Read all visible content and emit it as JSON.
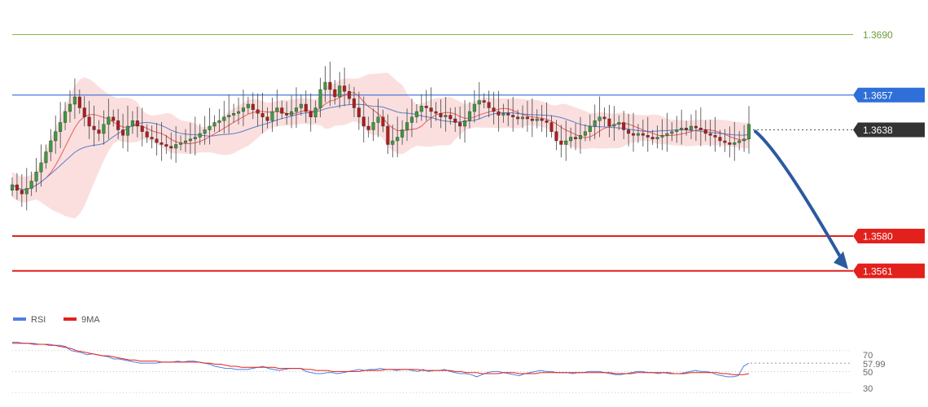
{
  "chart_data": {
    "type": "candlestick",
    "price_axis": {
      "min": 1.354,
      "max": 1.37
    },
    "levels": [
      {
        "name": "target-level-1-3690",
        "value": 1.369,
        "label": "1.3690",
        "line_color": "#7dbb52",
        "label_bg": "#ffffff",
        "label_color": "#6a9e36",
        "style": "thin"
      },
      {
        "name": "resistance-1-3657",
        "value": 1.3657,
        "label": "1.3657",
        "line_color": "#4a78d6",
        "label_bg": "#2e6fd8",
        "label_color": "#ffffff",
        "style": "medium"
      },
      {
        "name": "current-price-1-3638",
        "value": 1.3638,
        "label": "1.3638",
        "line_color": "#444444",
        "label_bg": "#333333",
        "label_color": "#ffffff",
        "style": "dotted"
      },
      {
        "name": "support-1-3580",
        "value": 1.358,
        "label": "1.3580",
        "line_color": "#e2211c",
        "label_bg": "#e2211c",
        "label_color": "#ffffff",
        "style": "thick"
      },
      {
        "name": "support-1-3561",
        "value": 1.3561,
        "label": "1.3561",
        "line_color": "#e2211c",
        "label_bg": "#e2211c",
        "label_color": "#ffffff",
        "style": "thick"
      }
    ],
    "price_path": [
      1.3608,
      1.3605,
      1.3603,
      1.3606,
      1.361,
      1.3615,
      1.362,
      1.3626,
      1.3632,
      1.3637,
      1.3642,
      1.3648,
      1.3652,
      1.3656,
      1.365,
      1.3645,
      1.364,
      1.3638,
      1.3636,
      1.3641,
      1.3645,
      1.3643,
      1.3638,
      1.3635,
      1.364,
      1.3643,
      1.364,
      1.3637,
      1.3634,
      1.3633,
      1.3631,
      1.363,
      1.3629,
      1.3628,
      1.363,
      1.3631,
      1.3632,
      1.3633,
      1.3634,
      1.3636,
      1.3638,
      1.364,
      1.3642,
      1.3643,
      1.3645,
      1.3646,
      1.3647,
      1.3648,
      1.365,
      1.3652,
      1.3649,
      1.3647,
      1.3645,
      1.3643,
      1.3648,
      1.365,
      1.3647,
      1.3646,
      1.3648,
      1.365,
      1.3652,
      1.3648,
      1.3645,
      1.365,
      1.366,
      1.3664,
      1.366,
      1.3656,
      1.3662,
      1.3659,
      1.3655,
      1.365,
      1.3645,
      1.364,
      1.3638,
      1.3642,
      1.3645,
      1.364,
      1.363,
      1.3632,
      1.3634,
      1.3638,
      1.3642,
      1.3645,
      1.3648,
      1.3651,
      1.365,
      1.3648,
      1.3647,
      1.3645,
      1.3646,
      1.3644,
      1.3642,
      1.364,
      1.3643,
      1.3648,
      1.3652,
      1.3654,
      1.3653,
      1.365,
      1.3648,
      1.3646,
      1.3647,
      1.3646,
      1.3645,
      1.3644,
      1.3645,
      1.3644,
      1.3643,
      1.3644,
      1.3643,
      1.3642,
      1.3637,
      1.3632,
      1.363,
      1.3632,
      1.3634,
      1.3633,
      1.3635,
      1.3637,
      1.364,
      1.3643,
      1.3645,
      1.3644,
      1.364,
      1.3641,
      1.3642,
      1.3638,
      1.3636,
      1.3635,
      1.3636,
      1.3635,
      1.3634,
      1.3633,
      1.3634,
      1.3635,
      1.3636,
      1.3637,
      1.3638,
      1.3639,
      1.3638,
      1.364,
      1.3639,
      1.3638,
      1.3636,
      1.3635,
      1.3634,
      1.3632,
      1.3631,
      1.363,
      1.3631,
      1.3632,
      1.3633,
      1.3641
    ],
    "bollinger_band": {
      "fill_color": "#f7c5c5",
      "fill_opacity": 0.55
    },
    "moving_averages": [
      {
        "name": "ma-fast-red",
        "color": "#e85a5a"
      },
      {
        "name": "ma-slow-blue",
        "color": "#5b7fc8"
      }
    ],
    "forecast_arrow": {
      "from": 1.3638,
      "to": 1.3561,
      "color": "#2c5aa0"
    },
    "rsi_panel": {
      "legend": [
        {
          "name": "RSI",
          "color": "#4e7fe0"
        },
        {
          "name": "9MA",
          "color": "#e2211c"
        }
      ],
      "ticks": [
        "70",
        "50",
        "30"
      ],
      "tick_values": [
        70,
        50,
        30
      ],
      "current_value": 57.99,
      "current_label": "57.99",
      "current_color": "#6a8fe0",
      "axis": {
        "min": 20,
        "max": 90
      },
      "rsi_values": [
        78,
        78,
        77,
        77,
        77,
        76,
        76,
        76,
        75,
        75,
        74,
        70,
        69,
        68,
        66,
        67,
        66,
        65,
        64,
        62,
        62,
        61,
        60,
        59,
        58,
        58,
        58,
        58,
        59,
        59,
        59,
        60,
        59,
        60,
        60,
        59,
        58,
        57,
        55,
        54,
        53,
        53,
        52,
        52,
        52,
        53,
        54,
        55,
        53,
        52,
        51,
        52,
        53,
        53,
        53,
        50,
        49,
        48,
        48,
        49,
        49,
        48,
        49,
        50,
        51,
        52,
        51,
        52,
        52,
        53,
        52,
        52,
        51,
        52,
        52,
        51,
        50,
        52,
        50,
        51,
        51,
        52,
        50,
        49,
        48,
        48,
        47,
        45,
        47,
        49,
        50,
        50,
        49,
        48,
        47,
        46,
        48,
        49,
        50,
        51,
        50,
        50,
        49,
        49,
        49,
        48,
        49,
        49,
        50,
        50,
        50,
        49,
        48,
        47,
        47,
        48,
        49,
        50,
        50,
        49,
        49,
        48,
        49,
        48,
        48,
        48,
        49,
        50,
        51,
        50,
        50,
        49,
        47,
        46,
        45,
        45,
        46,
        55,
        58
      ],
      "ma_values": [
        77,
        77,
        77,
        77,
        76,
        76,
        76,
        75,
        75,
        74,
        73,
        72,
        70,
        69,
        68,
        67,
        66,
        65,
        65,
        64,
        63,
        62,
        61,
        61,
        60,
        60,
        60,
        60,
        59,
        59,
        59,
        59,
        59,
        59,
        59,
        59,
        58,
        58,
        57,
        57,
        56,
        55,
        55,
        54,
        54,
        54,
        54,
        54,
        54,
        54,
        53,
        53,
        53,
        53,
        53,
        52,
        52,
        51,
        51,
        51,
        50,
        50,
        50,
        50,
        50,
        50,
        51,
        51,
        51,
        51,
        52,
        52,
        52,
        52,
        52,
        52,
        52,
        51,
        51,
        51,
        51,
        51,
        51,
        50,
        50,
        49,
        49,
        49,
        48,
        48,
        48,
        48,
        49,
        49,
        49,
        48,
        48,
        48,
        48,
        49,
        49,
        49,
        49,
        49,
        49,
        49,
        49,
        49,
        49,
        49,
        49,
        49,
        49,
        48,
        48,
        48,
        48,
        49,
        49,
        49,
        49,
        49,
        49,
        49,
        48,
        48,
        48,
        49,
        49,
        49,
        49,
        49,
        49,
        48,
        48,
        47,
        47,
        47,
        48
      ]
    }
  }
}
